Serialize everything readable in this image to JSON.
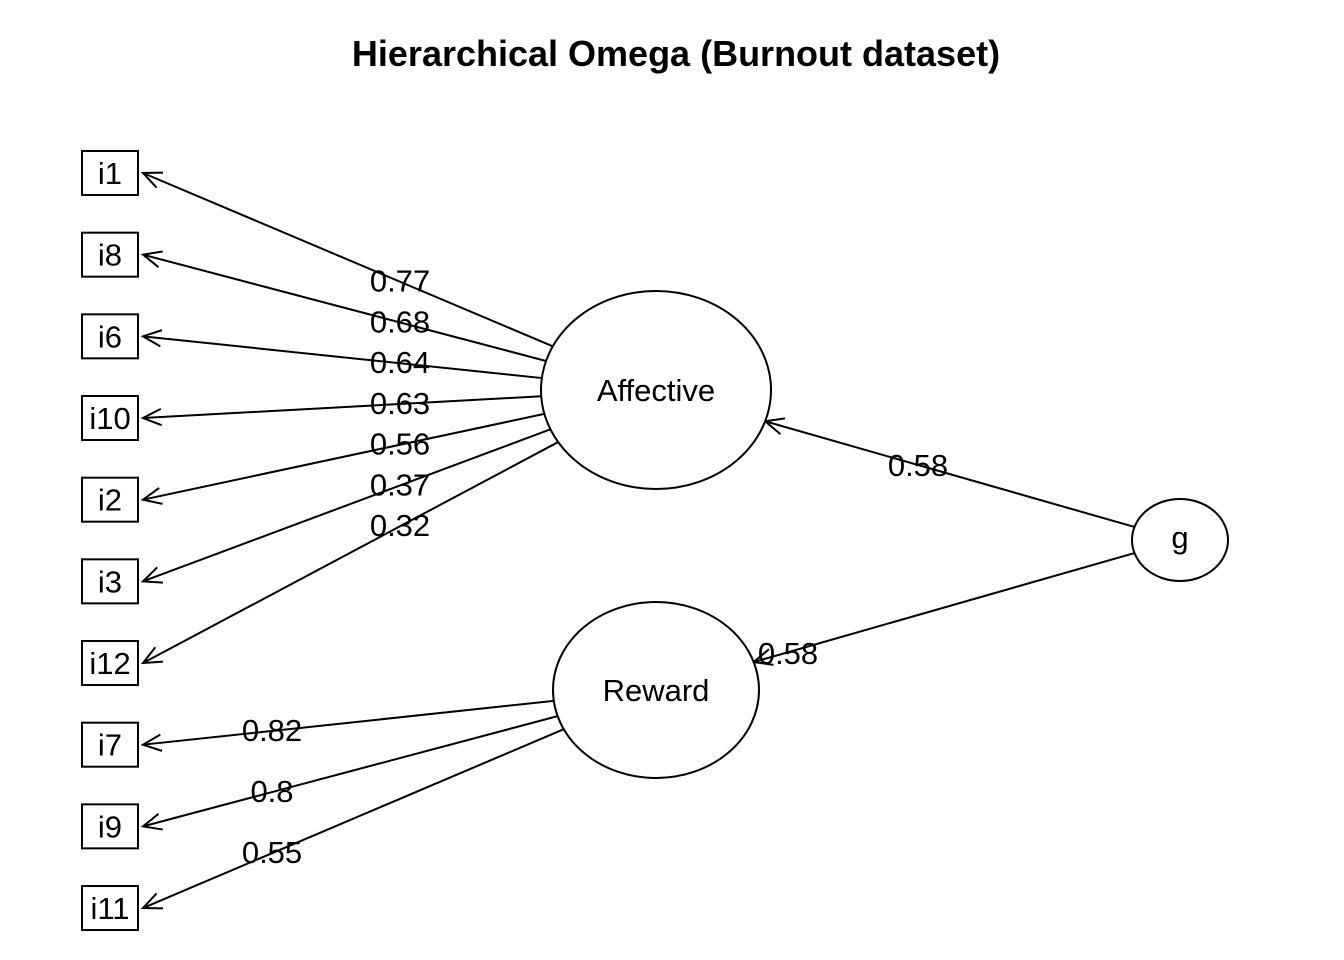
{
  "title": "Hierarchical Omega (Burnout dataset)",
  "general_factor": {
    "id": "g",
    "label": "g"
  },
  "group_factors": [
    {
      "id": "affective",
      "label": "Affective",
      "loading_from_g": "0.58"
    },
    {
      "id": "reward",
      "label": "Reward",
      "loading_from_g": "0.58"
    }
  ],
  "items": [
    {
      "id": "i1",
      "label": "i1",
      "factor": "affective",
      "loading": "0.77"
    },
    {
      "id": "i8",
      "label": "i8",
      "factor": "affective",
      "loading": "0.68"
    },
    {
      "id": "i6",
      "label": "i6",
      "factor": "affective",
      "loading": "0.64"
    },
    {
      "id": "i10",
      "label": "i10",
      "factor": "affective",
      "loading": "0.63"
    },
    {
      "id": "i2",
      "label": "i2",
      "factor": "affective",
      "loading": "0.56"
    },
    {
      "id": "i3",
      "label": "i3",
      "factor": "affective",
      "loading": "0.37"
    },
    {
      "id": "i12",
      "label": "i12",
      "factor": "affective",
      "loading": "0.32"
    },
    {
      "id": "i7",
      "label": "i7",
      "factor": "reward",
      "loading": "0.82"
    },
    {
      "id": "i9",
      "label": "i9",
      "factor": "reward",
      "loading": "0.8"
    },
    {
      "id": "i11",
      "label": "i11",
      "factor": "reward",
      "loading": "0.55"
    }
  ]
}
